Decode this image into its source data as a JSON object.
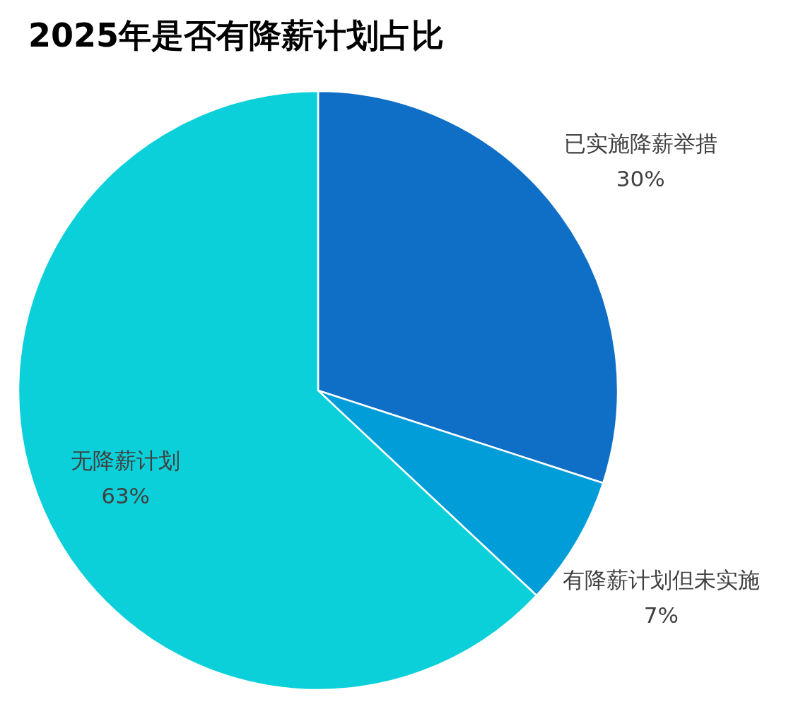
{
  "chart_data": {
    "type": "pie",
    "title": "2025年是否有降薪计划占比",
    "categories": [
      "已实施降薪举措",
      "有降薪计划但未实施",
      "无降薪计划"
    ],
    "values": [
      30,
      7,
      63
    ],
    "colors": [
      "#0f6fc6",
      "#009dd9",
      "#0bd0d9"
    ],
    "value_labels": [
      "30%",
      "7%",
      "63%"
    ]
  }
}
